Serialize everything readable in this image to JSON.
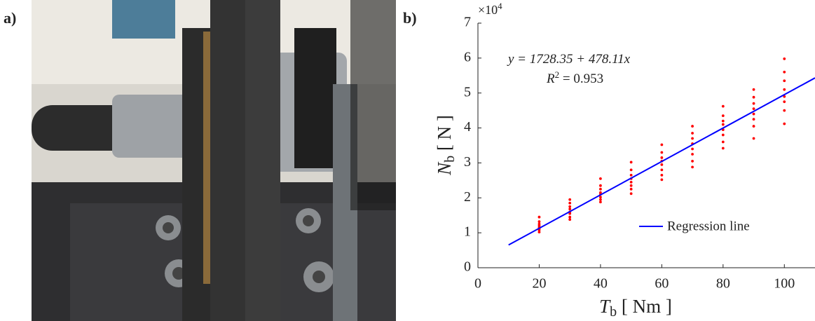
{
  "panel_labels": [
    "a)",
    "b)"
  ],
  "chart_data": {
    "type": "scatter",
    "multiplier": {
      "base": "×10",
      "sup": "4"
    },
    "equation": "y = 1728.35 + 478.11x",
    "r_squared": {
      "base": "R",
      "sup": "2",
      "rest": " = 0.953"
    },
    "xlabel": {
      "symbol": "T",
      "subscript": "b",
      "unit": " [ Nm ]"
    },
    "ylabel": {
      "symbol": "N",
      "subscript": "b",
      "unit": " [ N ]"
    },
    "xlim": [
      0,
      110
    ],
    "ylim": [
      0,
      7
    ],
    "xticks": [
      0,
      20,
      40,
      60,
      80,
      100
    ],
    "yticks": [
      0,
      1,
      2,
      3,
      4,
      5,
      6,
      7
    ],
    "series": [
      {
        "type": "scatter",
        "color": "#ff0000",
        "x": [
          20,
          20,
          20,
          20,
          20,
          20,
          20,
          20,
          30,
          30,
          30,
          30,
          30,
          30,
          30,
          30,
          40,
          40,
          40,
          40,
          40,
          40,
          40,
          40,
          50,
          50,
          50,
          50,
          50,
          50,
          50,
          50,
          60,
          60,
          60,
          60,
          60,
          60,
          60,
          60,
          70,
          70,
          70,
          70,
          70,
          70,
          70,
          70,
          80,
          80,
          80,
          80,
          80,
          80,
          80,
          80,
          90,
          90,
          90,
          90,
          90,
          90,
          90,
          90,
          100,
          100,
          100,
          100,
          100,
          100,
          100,
          100
        ],
        "values": [
          1.02,
          1.08,
          1.12,
          1.15,
          1.2,
          1.25,
          1.32,
          1.45,
          1.38,
          1.45,
          1.55,
          1.6,
          1.68,
          1.75,
          1.85,
          1.95,
          1.88,
          1.95,
          2.02,
          2.1,
          2.15,
          2.25,
          2.35,
          2.55,
          2.12,
          2.25,
          2.35,
          2.45,
          2.55,
          2.65,
          2.8,
          3.02,
          2.52,
          2.65,
          2.8,
          2.95,
          3.05,
          3.15,
          3.3,
          3.52,
          2.88,
          3.05,
          3.25,
          3.4,
          3.55,
          3.7,
          3.85,
          4.05,
          3.42,
          3.6,
          3.8,
          3.95,
          4.1,
          4.2,
          4.35,
          4.62,
          3.7,
          4.05,
          4.25,
          4.4,
          4.55,
          4.7,
          4.88,
          5.1,
          4.12,
          4.5,
          4.75,
          4.9,
          5.1,
          5.35,
          5.6,
          5.98
        ]
      },
      {
        "type": "line",
        "name": "Regression line",
        "color": "#0000ff",
        "x": [
          10,
          110
        ],
        "values": [
          0.651,
          5.432
        ]
      }
    ]
  }
}
